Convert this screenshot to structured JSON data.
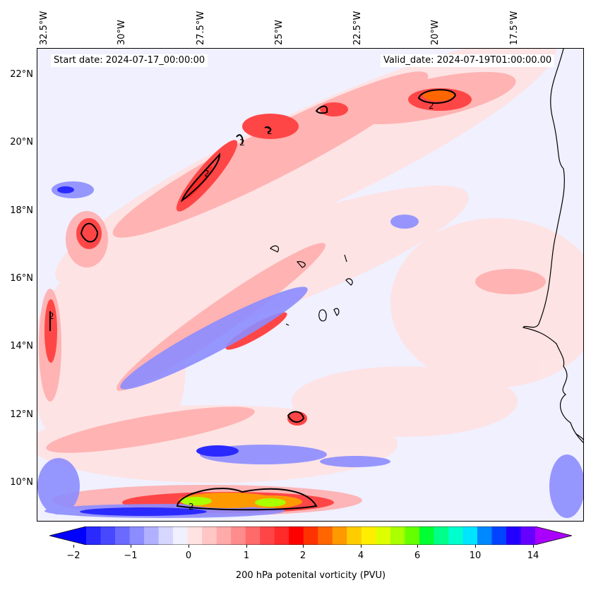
{
  "header": {
    "start_date": "Start date: 2024-07-17_00:00:00",
    "valid_date": "Valid_date: 2024-07-19T01:00:00.00"
  },
  "axes": {
    "lon_labels": [
      "32.5°W",
      "30°W",
      "27.5°W",
      "25°W",
      "22.5°W",
      "20°W",
      "17.5°W"
    ],
    "lat_labels": [
      "22°N",
      "20°N",
      "18°N",
      "16°N",
      "14°N",
      "12°N",
      "10°N"
    ]
  },
  "contour_labels": [
    "2",
    "2",
    "2",
    "2",
    "2",
    "2"
  ],
  "colorbar": {
    "ticks": [
      "−2",
      "−1",
      "0",
      "1",
      "2",
      "4",
      "6",
      "10",
      "14"
    ],
    "label": "200 hPa potenital vorticity (PVU)",
    "colors": [
      "#0000ff",
      "#2a2aff",
      "#4848ff",
      "#6a6aff",
      "#8c8cff",
      "#b0b0ff",
      "#d6d6ff",
      "#f0f0ff",
      "#ffe2e2",
      "#ffc6c6",
      "#ffaaaa",
      "#ff8c8c",
      "#ff6a6a",
      "#ff4646",
      "#ff2a2a",
      "#ff0000",
      "#ff3300",
      "#ff6600",
      "#ff9900",
      "#ffcc00",
      "#ffee00",
      "#ddff00",
      "#aaff00",
      "#66ff00",
      "#00ff33",
      "#00ff88",
      "#00ffcc",
      "#00e5ff",
      "#0088ff",
      "#0044ff",
      "#2200ff",
      "#6600ff",
      "#aa00ff"
    ]
  },
  "colors": {
    "background": "#f0f0ff",
    "low_blue": "#6a6aff",
    "mid_red": "#ff6a6a",
    "high_red": "#ff2a2a"
  }
}
